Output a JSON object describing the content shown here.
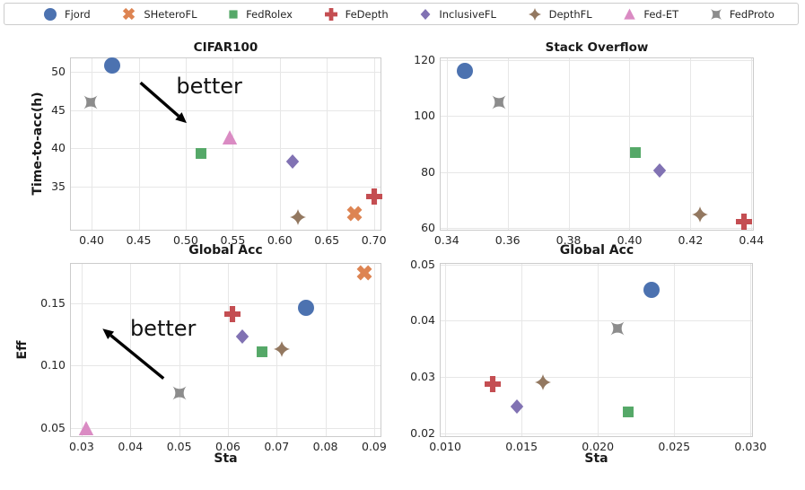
{
  "legend": {
    "items": [
      {
        "label": "Fjord",
        "marker": "circle",
        "color": "#4C72B0"
      },
      {
        "label": "SHeteroFL",
        "marker": "x",
        "color": "#DD8452"
      },
      {
        "label": "FedRolex",
        "marker": "square",
        "color": "#55A868"
      },
      {
        "label": "FeDepth",
        "marker": "plus",
        "color": "#C44E52"
      },
      {
        "label": "InclusiveFL",
        "marker": "diamond",
        "color": "#8172B3"
      },
      {
        "label": "DepthFL",
        "marker": "star4",
        "color": "#937860"
      },
      {
        "label": "Fed-ET",
        "marker": "triangle",
        "color": "#DA8BC3"
      },
      {
        "label": "FedProto",
        "marker": "pillow",
        "color": "#8C8C8C"
      }
    ]
  },
  "chart_data": [
    {
      "type": "scatter",
      "title": "CIFAR100",
      "xlabel": "Global Acc",
      "ylabel": "Time-to-acc(h)",
      "xlim": [
        0.378,
        0.707
      ],
      "ylim": [
        29.3,
        51.8
      ],
      "grid": true,
      "xticks": [
        {
          "value": 0.4,
          "label": "0.40"
        },
        {
          "value": 0.45,
          "label": "0.45"
        },
        {
          "value": 0.5,
          "label": "0.50"
        },
        {
          "value": 0.55,
          "label": "0.55"
        },
        {
          "value": 0.6,
          "label": "0.60"
        },
        {
          "value": 0.65,
          "label": "0.65"
        },
        {
          "value": 0.7,
          "label": "0.70"
        }
      ],
      "yticks": [
        {
          "value": 35,
          "label": "35"
        },
        {
          "value": 40,
          "label": "40"
        },
        {
          "value": 45,
          "label": "45"
        },
        {
          "value": 50,
          "label": "50"
        }
      ],
      "points": [
        {
          "series": "Fjord",
          "x": 0.422,
          "y": 50.8
        },
        {
          "series": "FedProto",
          "x": 0.399,
          "y": 46.0
        },
        {
          "series": "Fed-ET",
          "x": 0.547,
          "y": 41.4
        },
        {
          "series": "FedRolex",
          "x": 0.516,
          "y": 39.3
        },
        {
          "series": "InclusiveFL",
          "x": 0.614,
          "y": 38.3
        },
        {
          "series": "DepthFL",
          "x": 0.619,
          "y": 31.0
        },
        {
          "series": "SHeteroFL",
          "x": 0.679,
          "y": 31.4
        },
        {
          "series": "FeDepth",
          "x": 0.7,
          "y": 33.6
        }
      ],
      "annotation": {
        "text": "better",
        "text_x": 0.525,
        "text_y": 48.2,
        "arrow_from_x": 0.452,
        "arrow_from_y": 48.6,
        "arrow_to_x": 0.501,
        "arrow_to_y": 43.3
      }
    },
    {
      "type": "scatter",
      "title": "Stack Overflow",
      "xlabel": "Global Acc",
      "ylabel": "",
      "xlim": [
        0.338,
        0.4405
      ],
      "ylim": [
        59.5,
        120.5
      ],
      "grid": true,
      "xticks": [
        {
          "value": 0.34,
          "label": "0.34"
        },
        {
          "value": 0.36,
          "label": "0.36"
        },
        {
          "value": 0.38,
          "label": "0.38"
        },
        {
          "value": 0.4,
          "label": "0.40"
        },
        {
          "value": 0.42,
          "label": "0.42"
        },
        {
          "value": 0.44,
          "label": "0.44"
        }
      ],
      "yticks": [
        {
          "value": 60,
          "label": "60"
        },
        {
          "value": 80,
          "label": "80"
        },
        {
          "value": 100,
          "label": "100"
        },
        {
          "value": 120,
          "label": "120"
        }
      ],
      "points": [
        {
          "series": "Fjord",
          "x": 0.346,
          "y": 116.0
        },
        {
          "series": "FedProto",
          "x": 0.357,
          "y": 105.0
        },
        {
          "series": "FedRolex",
          "x": 0.402,
          "y": 87.0
        },
        {
          "series": "InclusiveFL",
          "x": 0.41,
          "y": 80.5
        },
        {
          "series": "DepthFL",
          "x": 0.423,
          "y": 65.0
        },
        {
          "series": "FeDepth",
          "x": 0.4375,
          "y": 62.5
        }
      ]
    },
    {
      "type": "scatter",
      "title": "",
      "xlabel": "Sta",
      "ylabel": "Eff",
      "xlim": [
        0.0278,
        0.0913
      ],
      "ylim": [
        0.0432,
        0.1815
      ],
      "grid": true,
      "xticks": [
        {
          "value": 0.03,
          "label": "0.03"
        },
        {
          "value": 0.04,
          "label": "0.04"
        },
        {
          "value": 0.05,
          "label": "0.05"
        },
        {
          "value": 0.06,
          "label": "0.06"
        },
        {
          "value": 0.07,
          "label": "0.07"
        },
        {
          "value": 0.08,
          "label": "0.08"
        },
        {
          "value": 0.09,
          "label": "0.09"
        }
      ],
      "yticks": [
        {
          "value": 0.05,
          "label": "0.05"
        },
        {
          "value": 0.1,
          "label": "0.10"
        },
        {
          "value": 0.15,
          "label": "0.15"
        }
      ],
      "points": [
        {
          "series": "Fed-ET",
          "x": 0.031,
          "y": 0.05
        },
        {
          "series": "FedProto",
          "x": 0.05,
          "y": 0.078
        },
        {
          "series": "FeDepth",
          "x": 0.061,
          "y": 0.141
        },
        {
          "series": "InclusiveFL",
          "x": 0.063,
          "y": 0.123
        },
        {
          "series": "FedRolex",
          "x": 0.067,
          "y": 0.111
        },
        {
          "series": "DepthFL",
          "x": 0.071,
          "y": 0.113
        },
        {
          "series": "Fjord",
          "x": 0.076,
          "y": 0.146
        },
        {
          "series": "SHeteroFL",
          "x": 0.088,
          "y": 0.174
        }
      ],
      "annotation": {
        "text": "better",
        "text_x": 0.0467,
        "text_y": 0.1295,
        "arrow_from_x": 0.0468,
        "arrow_from_y": 0.0895,
        "arrow_to_x": 0.0343,
        "arrow_to_y": 0.1295
      }
    },
    {
      "type": "scatter",
      "title": "",
      "xlabel": "Sta",
      "ylabel": "",
      "xlim": [
        0.0097,
        0.0301
      ],
      "ylim": [
        0.0195,
        0.0501
      ],
      "grid": true,
      "xticks": [
        {
          "value": 0.01,
          "label": "0.010"
        },
        {
          "value": 0.015,
          "label": "0.015"
        },
        {
          "value": 0.02,
          "label": "0.020"
        },
        {
          "value": 0.025,
          "label": "0.025"
        },
        {
          "value": 0.03,
          "label": "0.030"
        }
      ],
      "yticks": [
        {
          "value": 0.02,
          "label": "0.02"
        },
        {
          "value": 0.03,
          "label": "0.03"
        },
        {
          "value": 0.04,
          "label": "0.04"
        },
        {
          "value": 0.05,
          "label": "0.05"
        }
      ],
      "points": [
        {
          "series": "FeDepth",
          "x": 0.0131,
          "y": 0.0288
        },
        {
          "series": "DepthFL",
          "x": 0.0164,
          "y": 0.029
        },
        {
          "series": "InclusiveFL",
          "x": 0.0147,
          "y": 0.0247
        },
        {
          "series": "FedRolex",
          "x": 0.022,
          "y": 0.0238
        },
        {
          "series": "FedProto",
          "x": 0.0213,
          "y": 0.0386
        },
        {
          "series": "Fjord",
          "x": 0.0235,
          "y": 0.0455
        }
      ]
    }
  ]
}
